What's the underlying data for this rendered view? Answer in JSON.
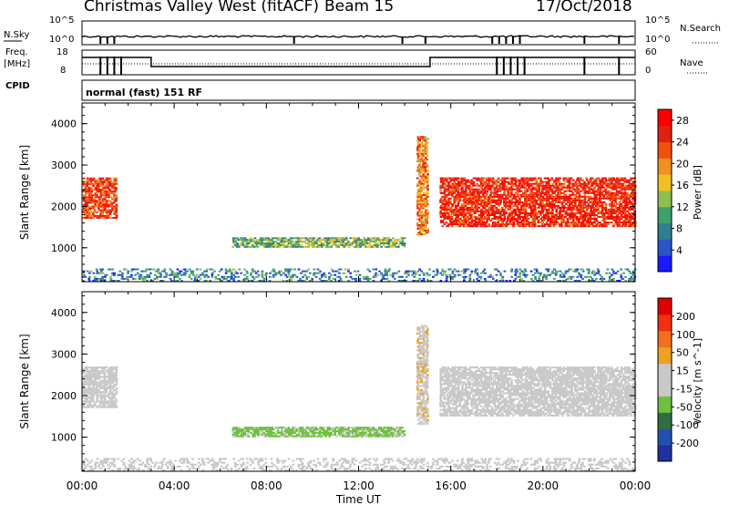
{
  "header": {
    "station": "Christmas Valley West (fitACF)",
    "beam": "Beam 15",
    "date": "17/Oct/2018"
  },
  "status_panel": {
    "left_labels": {
      "nsky": "N.Sky",
      "freq_line1": "Freq.",
      "freq_line2": "[MHz]",
      "cpid": "CPID"
    },
    "right_labels": {
      "nsearch": "N.Search",
      "nave": "Nave"
    },
    "noise_ticks": [
      "10^5",
      "10^0"
    ],
    "freq_ticks": [
      "18",
      "8"
    ],
    "nave_ticks": [
      "60",
      "0"
    ],
    "cpid_text": "normal (fast) 151 RF"
  },
  "colors": {
    "power_scale": [
      "#1a1aff",
      "#2a55c8",
      "#2f7f8f",
      "#3f9f6f",
      "#8fbf4f",
      "#f0c020",
      "#f09020",
      "#f05010",
      "#e02010",
      "#ff0000"
    ],
    "velocity_scale": [
      "#2030a0",
      "#2050b0",
      "#306f3f",
      "#70c040",
      "#c8c8c8",
      "#c8c8c8",
      "#f0a020",
      "#f07020",
      "#f03010",
      "#e00000"
    ]
  },
  "chart_data": [
    {
      "type": "heatmap",
      "title": "Power",
      "xlabel": "Time UT",
      "ylabel": "Slant Range [km]",
      "x_ticks": [
        "00:00",
        "04:00",
        "08:00",
        "12:00",
        "16:00",
        "20:00",
        "00:00"
      ],
      "xlim_hours": [
        0,
        24
      ],
      "y_ticks": [
        1000,
        2000,
        3000,
        4000
      ],
      "ylim_km": [
        180,
        4500
      ],
      "colorbar": {
        "label": "Power [dB]",
        "ticks": [
          4,
          8,
          12,
          16,
          20,
          24,
          28
        ],
        "range": [
          0,
          30
        ]
      },
      "echo_regions": [
        {
          "t_start": 0.0,
          "t_end": 1.5,
          "r_low": 1700,
          "r_high": 2700,
          "value_db": 24
        },
        {
          "t_start": 6.5,
          "t_end": 14.0,
          "r_low": 1000,
          "r_high": 1250,
          "value_db": 12
        },
        {
          "t_start": 14.5,
          "t_end": 15.0,
          "r_low": 1300,
          "r_high": 3700,
          "value_db": 20
        },
        {
          "t_start": 15.5,
          "t_end": 24.0,
          "r_low": 1500,
          "r_high": 2700,
          "value_db": 26
        },
        {
          "t_start": 0.0,
          "t_end": 24.0,
          "r_low": 180,
          "r_high": 500,
          "value_db": 8
        }
      ]
    },
    {
      "type": "heatmap",
      "title": "Velocity",
      "xlabel": "Time UT",
      "ylabel": "Slant Range [km]",
      "x_ticks": [
        "00:00",
        "04:00",
        "08:00",
        "12:00",
        "16:00",
        "20:00",
        "00:00"
      ],
      "xlim_hours": [
        0,
        24
      ],
      "y_ticks": [
        1000,
        2000,
        3000,
        4000
      ],
      "ylim_km": [
        180,
        4500
      ],
      "colorbar": {
        "label": "Velocity [m s^-1]",
        "ticks": [
          200,
          100,
          50,
          15,
          -15,
          -50,
          -100,
          -200
        ],
        "range": [
          -250,
          250
        ]
      },
      "echo_regions": [
        {
          "t_start": 0.0,
          "t_end": 1.5,
          "r_low": 1700,
          "r_high": 2700,
          "value_ms": 0
        },
        {
          "t_start": 6.5,
          "t_end": 14.0,
          "r_low": 1000,
          "r_high": 1250,
          "value_ms": -60
        },
        {
          "t_start": 14.5,
          "t_end": 15.0,
          "r_low": 1300,
          "r_high": 3700,
          "value_ms": 40
        },
        {
          "t_start": 15.5,
          "t_end": 24.0,
          "r_low": 1500,
          "r_high": 2700,
          "value_ms": 0
        },
        {
          "t_start": 0.0,
          "t_end": 24.0,
          "r_low": 180,
          "r_high": 500,
          "value_ms": 30
        }
      ]
    }
  ]
}
